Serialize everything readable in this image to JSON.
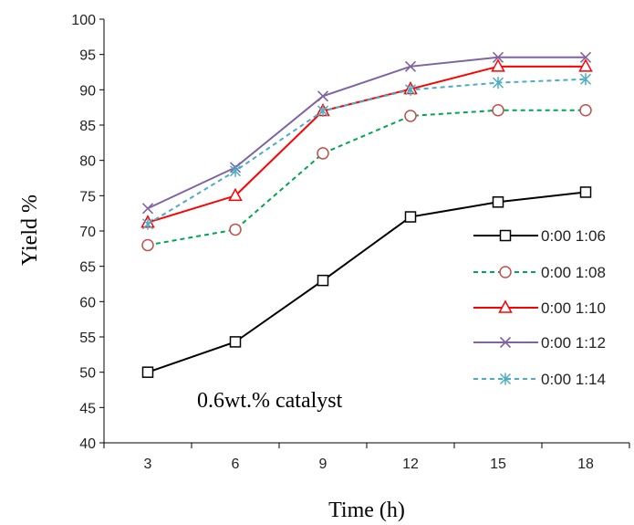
{
  "chart_data": {
    "type": "line",
    "xlabel": "Time (h)",
    "ylabel": "Yield %",
    "annotation": "0.6wt.% catalyst",
    "x": [
      3,
      6,
      9,
      12,
      15,
      18
    ],
    "xticks": [
      "3",
      "6",
      "9",
      "12",
      "15",
      "18"
    ],
    "ylim": [
      40,
      100
    ],
    "yticks": [
      "40",
      "45",
      "50",
      "55",
      "60",
      "65",
      "70",
      "75",
      "80",
      "85",
      "90",
      "95",
      "100"
    ],
    "grid": false,
    "legend_position": "right",
    "series": [
      {
        "name": "0:00 1:06",
        "values": [
          50,
          54.3,
          63,
          72,
          74.1,
          75.5
        ],
        "color": "#000000",
        "dash": "solid",
        "marker": "square"
      },
      {
        "name": "0:00 1:08",
        "values": [
          68,
          70.2,
          81,
          86.3,
          87.1,
          87.1
        ],
        "color": "#00A651",
        "dash": "dashed",
        "marker": "circle",
        "marker_color": "#C0504D"
      },
      {
        "name": "0:00 1:10",
        "values": [
          71.2,
          75,
          87,
          90.1,
          93.3,
          93.3
        ],
        "color": "#FF0000",
        "dash": "solid",
        "marker": "triangle"
      },
      {
        "name": "0:00 1:12",
        "values": [
          73.2,
          79,
          89.1,
          93.3,
          94.6,
          94.6
        ],
        "color": "#8064A2",
        "dash": "solid",
        "marker": "x"
      },
      {
        "name": "0:00 1:14",
        "values": [
          71,
          78.5,
          87,
          90,
          91,
          91.5
        ],
        "color": "#4BACC6",
        "dash": "dashed",
        "marker": "asterisk"
      }
    ]
  }
}
